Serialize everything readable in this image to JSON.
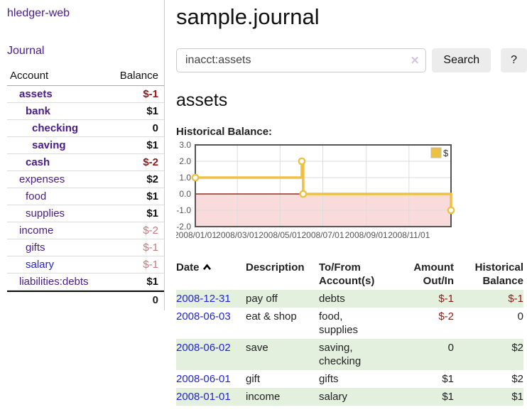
{
  "app": {
    "title": "hledger-web",
    "nav_journal": "Journal"
  },
  "colors": {
    "accent_purple": "#4a1b8c",
    "link_blue": "#2222dd",
    "negative_strong": "#961616",
    "negative_muted": "#c47878",
    "row_stripe_green": "#e4f0de",
    "series_gold": "#edc240",
    "negative_area_pink": "#f9dbdb",
    "zero_line_red": "#8b0000"
  },
  "sidebar": {
    "header": {
      "account": "Account",
      "balance": "Balance"
    },
    "accounts": [
      {
        "name": "assets",
        "balance": "$-1",
        "depth": 1,
        "bold": true
      },
      {
        "name": "bank",
        "balance": "$1",
        "depth": 2,
        "bold": true
      },
      {
        "name": "checking",
        "balance": "0",
        "depth": 3,
        "bold": true
      },
      {
        "name": "saving",
        "balance": "$1",
        "depth": 3,
        "bold": true
      },
      {
        "name": "cash",
        "balance": "$-2",
        "depth": 2,
        "bold": true
      },
      {
        "name": "expenses",
        "balance": "$2",
        "depth": 1,
        "bold": false
      },
      {
        "name": "food",
        "balance": "$1",
        "depth": 2,
        "bold": false
      },
      {
        "name": "supplies",
        "balance": "$1",
        "depth": 2,
        "bold": false
      },
      {
        "name": "income",
        "balance": "$-2",
        "depth": 1,
        "bold": false
      },
      {
        "name": "gifts",
        "balance": "$-1",
        "depth": 2,
        "bold": false
      },
      {
        "name": "salary",
        "balance": "$-1",
        "depth": 2,
        "bold": false,
        "link_style": "blue"
      },
      {
        "name": "liabilities:debts",
        "balance": "$1",
        "depth": 1,
        "bold": false
      }
    ],
    "total": "0"
  },
  "header": {
    "title": "sample.journal"
  },
  "search": {
    "query": "inacct:assets",
    "clear_icon": "✕",
    "button_label": "Search",
    "help_label": "?"
  },
  "account_page": {
    "title": "assets",
    "chart_label": "Historical Balance:"
  },
  "chart_data": {
    "type": "line",
    "step": true,
    "title": "Historical Balance",
    "series": [
      {
        "name": "$",
        "color": "#edc240",
        "points": [
          [
            "2008-01-01",
            1
          ],
          [
            "2008-06-01",
            2
          ],
          [
            "2008-06-03",
            0
          ],
          [
            "2008-12-31",
            -1
          ]
        ]
      }
    ],
    "x_range": [
      "2008-01-01",
      "2008-12-31"
    ],
    "x_ticks": [
      "2008/01/01",
      "2008/03/01",
      "2008/05/01",
      "2008/07/01",
      "2008/09/01",
      "2008/11/01"
    ],
    "y_ticks": [
      "3.0",
      "2.0",
      "1.0",
      "0.0",
      "-1.0",
      "-2.0"
    ],
    "ylim": [
      -2,
      3
    ],
    "grid": true,
    "legend": "$",
    "legend_position": "top-right",
    "negative_fill": "#f9dbdb",
    "zero_line_color": "#8b0000"
  },
  "register": {
    "headers": {
      "date": "Date",
      "sort_indicator": "ascending",
      "description": "Description",
      "accounts": "To/From Account(s)",
      "amount": "Amount Out/In",
      "balance": "Historical Balance"
    },
    "rows": [
      {
        "date": "2008-12-31",
        "description": "pay off",
        "accounts": "debts",
        "amount": "$-1",
        "balance": "$-1"
      },
      {
        "date": "2008-06-03",
        "description": "eat & shop",
        "accounts": "food, supplies",
        "amount": "$-2",
        "balance": "0"
      },
      {
        "date": "2008-06-02",
        "description": "save",
        "accounts": "saving, checking",
        "amount": "0",
        "balance": "$2"
      },
      {
        "date": "2008-06-01",
        "description": "gift",
        "accounts": "gifts",
        "amount": "$1",
        "balance": "$2"
      },
      {
        "date": "2008-01-01",
        "description": "income",
        "accounts": "salary",
        "amount": "$1",
        "balance": "$1"
      }
    ]
  }
}
